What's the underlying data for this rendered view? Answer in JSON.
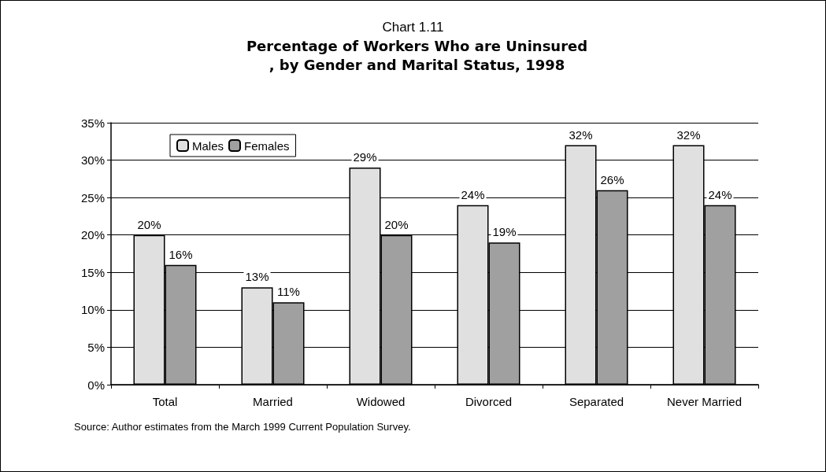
{
  "chart_data": {
    "type": "bar",
    "title": "Chart 1.11",
    "subtitle": "Percentage of Workers Who are Uninsured, by Gender and Marital Status, 1998",
    "categories": [
      "Total",
      "Married",
      "Widowed",
      "Divorced",
      "Separated",
      "Never Married"
    ],
    "series": [
      {
        "name": "Males",
        "color": "#e0e0e0",
        "values": [
          20,
          13,
          29,
          24,
          32,
          32
        ],
        "value_labels": [
          "20%",
          "13%",
          "29%",
          "24%",
          "32%",
          "32%"
        ]
      },
      {
        "name": "Females",
        "color": "#a0a0a0",
        "values": [
          16,
          11,
          20,
          19,
          26,
          24
        ],
        "value_labels": [
          "16%",
          "11%",
          "20%",
          "19%",
          "26%",
          "24%"
        ]
      }
    ],
    "ylim": [
      0,
      35
    ],
    "yticks": [
      {
        "value": 0,
        "label": "0%"
      },
      {
        "value": 5,
        "label": "5%"
      },
      {
        "value": 10,
        "label": "10%"
      },
      {
        "value": 15,
        "label": "15%"
      },
      {
        "value": 20,
        "label": "20%"
      },
      {
        "value": 25,
        "label": "25%"
      },
      {
        "value": 30,
        "label": "30%"
      },
      {
        "value": 35,
        "label": "35%"
      }
    ],
    "grid": "y",
    "legend": "top left",
    "annotations": [
      "Source: Author estimates from the March 1999 Current Population Survey."
    ]
  }
}
